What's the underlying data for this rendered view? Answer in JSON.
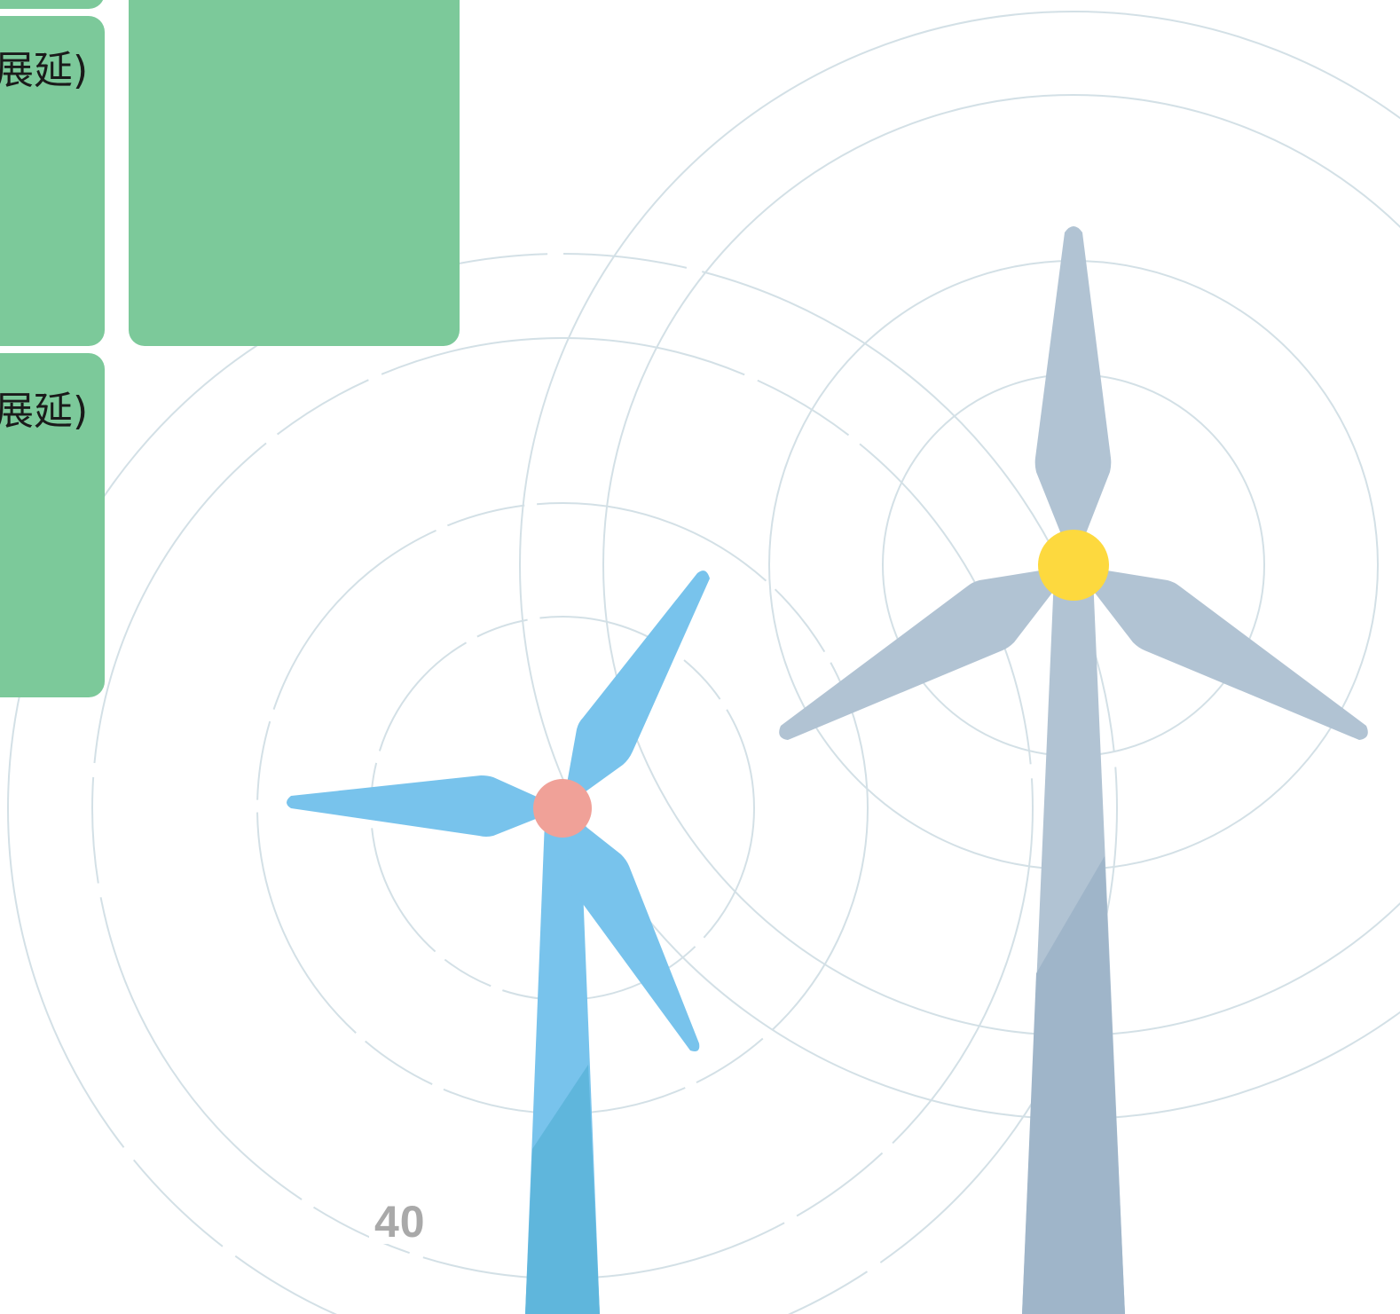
{
  "cards": {
    "left_top_text": "展延)",
    "left_bottom_text": "展延)"
  },
  "footer": {
    "page_number": "40"
  },
  "colors": {
    "card_green": "#7cc99a",
    "ring_stroke": "#d3e0e6",
    "turbine_blue": "#78c3ec",
    "turbine_blue_shade": "#5fb6dc",
    "hub_pink": "#f0a198",
    "turbine_grey": "#b1c3d3",
    "turbine_grey_shade": "#9fb5c9",
    "hub_yellow": "#fdd93e",
    "page_number": "#a9a9a9"
  },
  "icons": [
    "wind-turbine-blue-icon",
    "wind-turbine-grey-icon"
  ]
}
